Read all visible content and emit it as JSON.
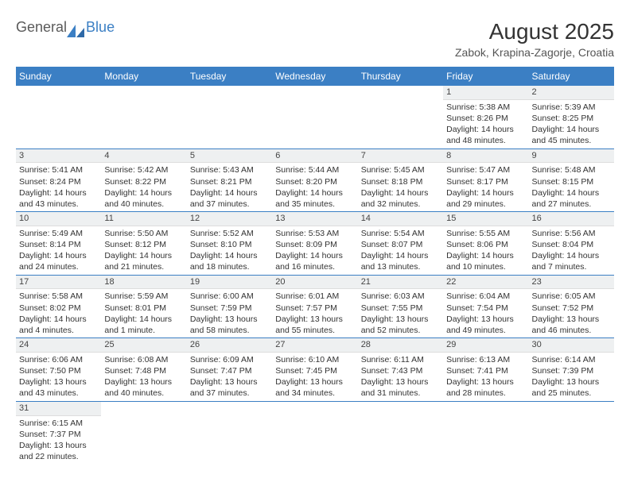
{
  "brand": {
    "general": "General",
    "blue": "Blue"
  },
  "title": "August 2025",
  "location": "Zabok, Krapina-Zagorje, Croatia",
  "colors": {
    "header_bg": "#3b7fc4",
    "header_text": "#ffffff",
    "daynum_bg": "#eef0f1",
    "border": "#3b7fc4",
    "text": "#333333",
    "background": "#ffffff"
  },
  "dayNames": [
    "Sunday",
    "Monday",
    "Tuesday",
    "Wednesday",
    "Thursday",
    "Friday",
    "Saturday"
  ],
  "weeks": [
    [
      null,
      null,
      null,
      null,
      null,
      {
        "d": "1",
        "sr": "5:38 AM",
        "ss": "8:26 PM",
        "dl": "14 hours and 48 minutes."
      },
      {
        "d": "2",
        "sr": "5:39 AM",
        "ss": "8:25 PM",
        "dl": "14 hours and 45 minutes."
      }
    ],
    [
      {
        "d": "3",
        "sr": "5:41 AM",
        "ss": "8:24 PM",
        "dl": "14 hours and 43 minutes."
      },
      {
        "d": "4",
        "sr": "5:42 AM",
        "ss": "8:22 PM",
        "dl": "14 hours and 40 minutes."
      },
      {
        "d": "5",
        "sr": "5:43 AM",
        "ss": "8:21 PM",
        "dl": "14 hours and 37 minutes."
      },
      {
        "d": "6",
        "sr": "5:44 AM",
        "ss": "8:20 PM",
        "dl": "14 hours and 35 minutes."
      },
      {
        "d": "7",
        "sr": "5:45 AM",
        "ss": "8:18 PM",
        "dl": "14 hours and 32 minutes."
      },
      {
        "d": "8",
        "sr": "5:47 AM",
        "ss": "8:17 PM",
        "dl": "14 hours and 29 minutes."
      },
      {
        "d": "9",
        "sr": "5:48 AM",
        "ss": "8:15 PM",
        "dl": "14 hours and 27 minutes."
      }
    ],
    [
      {
        "d": "10",
        "sr": "5:49 AM",
        "ss": "8:14 PM",
        "dl": "14 hours and 24 minutes."
      },
      {
        "d": "11",
        "sr": "5:50 AM",
        "ss": "8:12 PM",
        "dl": "14 hours and 21 minutes."
      },
      {
        "d": "12",
        "sr": "5:52 AM",
        "ss": "8:10 PM",
        "dl": "14 hours and 18 minutes."
      },
      {
        "d": "13",
        "sr": "5:53 AM",
        "ss": "8:09 PM",
        "dl": "14 hours and 16 minutes."
      },
      {
        "d": "14",
        "sr": "5:54 AM",
        "ss": "8:07 PM",
        "dl": "14 hours and 13 minutes."
      },
      {
        "d": "15",
        "sr": "5:55 AM",
        "ss": "8:06 PM",
        "dl": "14 hours and 10 minutes."
      },
      {
        "d": "16",
        "sr": "5:56 AM",
        "ss": "8:04 PM",
        "dl": "14 hours and 7 minutes."
      }
    ],
    [
      {
        "d": "17",
        "sr": "5:58 AM",
        "ss": "8:02 PM",
        "dl": "14 hours and 4 minutes."
      },
      {
        "d": "18",
        "sr": "5:59 AM",
        "ss": "8:01 PM",
        "dl": "14 hours and 1 minute."
      },
      {
        "d": "19",
        "sr": "6:00 AM",
        "ss": "7:59 PM",
        "dl": "13 hours and 58 minutes."
      },
      {
        "d": "20",
        "sr": "6:01 AM",
        "ss": "7:57 PM",
        "dl": "13 hours and 55 minutes."
      },
      {
        "d": "21",
        "sr": "6:03 AM",
        "ss": "7:55 PM",
        "dl": "13 hours and 52 minutes."
      },
      {
        "d": "22",
        "sr": "6:04 AM",
        "ss": "7:54 PM",
        "dl": "13 hours and 49 minutes."
      },
      {
        "d": "23",
        "sr": "6:05 AM",
        "ss": "7:52 PM",
        "dl": "13 hours and 46 minutes."
      }
    ],
    [
      {
        "d": "24",
        "sr": "6:06 AM",
        "ss": "7:50 PM",
        "dl": "13 hours and 43 minutes."
      },
      {
        "d": "25",
        "sr": "6:08 AM",
        "ss": "7:48 PM",
        "dl": "13 hours and 40 minutes."
      },
      {
        "d": "26",
        "sr": "6:09 AM",
        "ss": "7:47 PM",
        "dl": "13 hours and 37 minutes."
      },
      {
        "d": "27",
        "sr": "6:10 AM",
        "ss": "7:45 PM",
        "dl": "13 hours and 34 minutes."
      },
      {
        "d": "28",
        "sr": "6:11 AM",
        "ss": "7:43 PM",
        "dl": "13 hours and 31 minutes."
      },
      {
        "d": "29",
        "sr": "6:13 AM",
        "ss": "7:41 PM",
        "dl": "13 hours and 28 minutes."
      },
      {
        "d": "30",
        "sr": "6:14 AM",
        "ss": "7:39 PM",
        "dl": "13 hours and 25 minutes."
      }
    ],
    [
      {
        "d": "31",
        "sr": "6:15 AM",
        "ss": "7:37 PM",
        "dl": "13 hours and 22 minutes."
      },
      null,
      null,
      null,
      null,
      null,
      null
    ]
  ],
  "labels": {
    "sunrise": "Sunrise:",
    "sunset": "Sunset:",
    "daylight": "Daylight:"
  }
}
